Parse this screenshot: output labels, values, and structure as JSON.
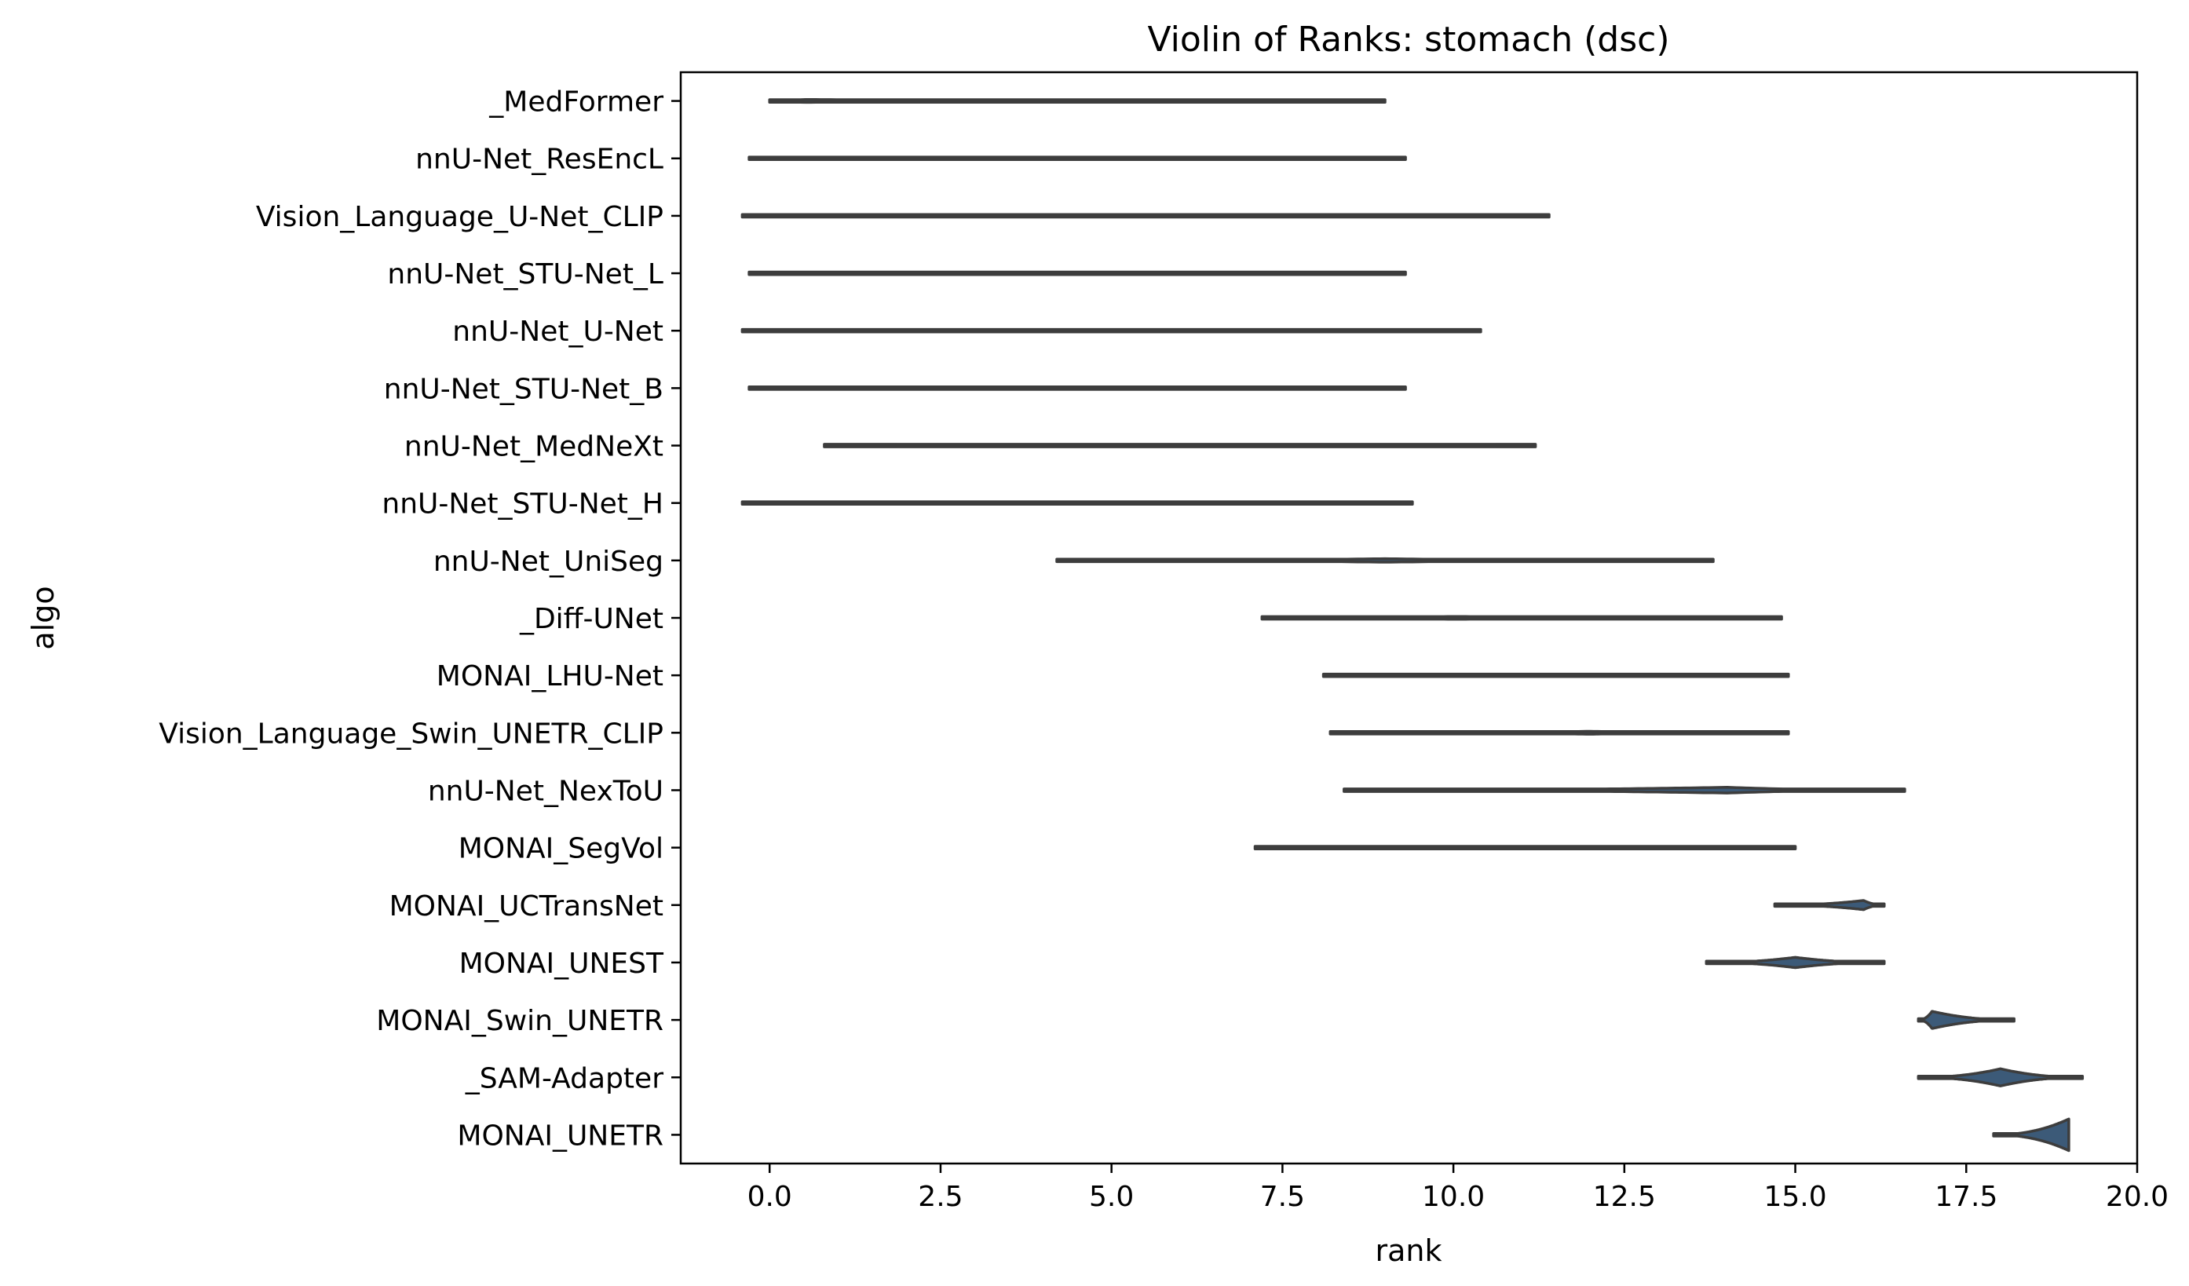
{
  "chart_data": {
    "type": "violin",
    "orientation": "horizontal",
    "title": "Violin of Ranks: stomach (dsc)",
    "xlabel": "rank",
    "ylabel": "algo",
    "xlim": [
      -1.3,
      20.0
    ],
    "xticks": [
      0.0,
      2.5,
      5.0,
      7.5,
      10.0,
      12.5,
      15.0,
      17.5,
      20.0
    ],
    "xtick_labels": [
      "0.0",
      "2.5",
      "5.0",
      "7.5",
      "10.0",
      "12.5",
      "15.0",
      "17.5",
      "20.0"
    ],
    "grid": false,
    "legend": "none",
    "colors": {
      "violin_fill": "#3c5a78",
      "violin_edge": "#3d3d3d"
    },
    "series": [
      {
        "name": "_MedFormer",
        "range": [
          0.0,
          9.0
        ],
        "mode": 0.5,
        "peak_width": 0.05
      },
      {
        "name": "nnU-Net_ResEncL",
        "range": [
          -0.3,
          9.3
        ],
        "mode": 4.5,
        "peak_width": 0.03
      },
      {
        "name": "Vision_Language_U-Net_CLIP",
        "range": [
          -0.4,
          11.4
        ],
        "mode": 5.0,
        "peak_width": 0.03
      },
      {
        "name": "nnU-Net_STU-Net_L",
        "range": [
          -0.3,
          9.3
        ],
        "mode": 4.5,
        "peak_width": 0.03
      },
      {
        "name": "nnU-Net_U-Net",
        "range": [
          -0.4,
          10.4
        ],
        "mode": 5.0,
        "peak_width": 0.03
      },
      {
        "name": "nnU-Net_STU-Net_B",
        "range": [
          -0.3,
          9.3
        ],
        "mode": 4.5,
        "peak_width": 0.03
      },
      {
        "name": "nnU-Net_MedNeXt",
        "range": [
          0.8,
          11.2
        ],
        "mode": 8.0,
        "peak_width": 0.03
      },
      {
        "name": "nnU-Net_STU-Net_H",
        "range": [
          -0.4,
          9.4
        ],
        "mode": 4.5,
        "peak_width": 0.03
      },
      {
        "name": "nnU-Net_UniSeg",
        "range": [
          4.2,
          13.8
        ],
        "mode": 9.0,
        "peak_width": 0.06
      },
      {
        "name": "_Diff-UNet",
        "range": [
          7.2,
          14.8
        ],
        "mode": 10.0,
        "peak_width": 0.05
      },
      {
        "name": "MONAI_LHU-Net",
        "range": [
          8.1,
          14.9
        ],
        "mode": 11.0,
        "peak_width": 0.04
      },
      {
        "name": "Vision_Language_Swin_UNETR_CLIP",
        "range": [
          8.2,
          14.9
        ],
        "mode": 12.0,
        "peak_width": 0.05
      },
      {
        "name": "nnU-Net_NexToU",
        "range": [
          8.4,
          16.6
        ],
        "mode": 14.0,
        "peak_width": 0.1
      },
      {
        "name": "MONAI_SegVol",
        "range": [
          7.1,
          15.0
        ],
        "mode": 11.0,
        "peak_width": 0.04
      },
      {
        "name": "MONAI_UCTransNet",
        "range": [
          14.7,
          16.3
        ],
        "mode": 16.0,
        "peak_width": 0.16
      },
      {
        "name": "MONAI_UNEST",
        "range": [
          13.7,
          16.3
        ],
        "mode": 15.0,
        "peak_width": 0.18
      },
      {
        "name": "MONAI_Swin_UNETR",
        "range": [
          16.8,
          18.2
        ],
        "mode": 17.0,
        "peak_width": 0.3
      },
      {
        "name": "_SAM-Adapter",
        "range": [
          16.8,
          19.2
        ],
        "mode": 18.0,
        "peak_width": 0.3
      },
      {
        "name": "MONAI_UNETR",
        "range": [
          17.9,
          19.0
        ],
        "mode": 19.0,
        "peak_width": 0.55
      }
    ]
  }
}
